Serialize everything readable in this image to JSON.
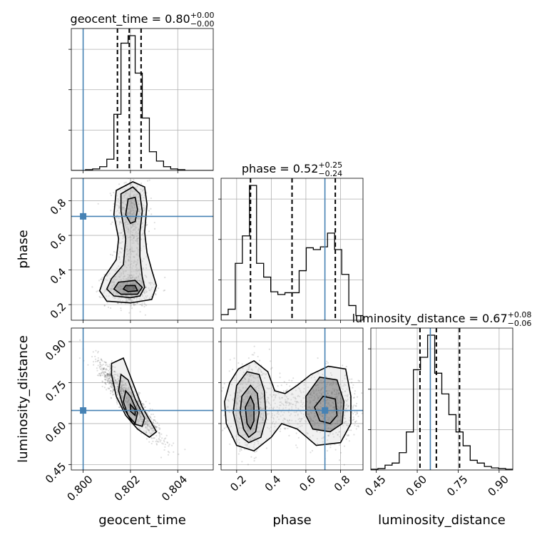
{
  "chart_data": {
    "type": "corner",
    "parameters": [
      "geocent_time",
      "phase",
      "luminosity_distance"
    ],
    "ranges": {
      "geocent_time": [
        0.7995,
        0.8055
      ],
      "phase": [
        0.11,
        0.93
      ],
      "luminosity_distance": [
        0.43,
        0.95
      ]
    },
    "ticks": {
      "geocent_time": {
        "values": [
          0.8,
          0.802,
          0.804
        ],
        "labels": [
          "0.800",
          "0.802",
          "0.804"
        ]
      },
      "phase": {
        "values": [
          0.2,
          0.4,
          0.6,
          0.8
        ],
        "labels": [
          "0.2",
          "0.4",
          "0.6",
          "0.8"
        ]
      },
      "luminosity_distance": {
        "values": [
          0.45,
          0.6,
          0.75,
          0.9
        ],
        "labels": [
          "0.45",
          "0.60",
          "0.75",
          "0.90"
        ]
      }
    },
    "truths": {
      "geocent_time": 0.8,
      "phase": 0.71,
      "luminosity_distance": 0.648
    },
    "summaries": [
      {
        "param": "geocent_time",
        "label": "geocent_time = 0.80",
        "median": 0.8,
        "plus": "+0.00",
        "minus": "−0.00",
        "quantile_lines": [
          0.80145,
          0.80195,
          0.80245
        ]
      },
      {
        "param": "phase",
        "label": "phase = 0.52",
        "median": 0.52,
        "plus": "+0.25",
        "minus": "−0.24",
        "quantile_lines": [
          0.28,
          0.52,
          0.77
        ]
      },
      {
        "param": "luminosity_distance",
        "label": "luminosity_distance = 0.67",
        "median": 0.67,
        "plus": "+0.08",
        "minus": "−0.06",
        "quantile_lines": [
          0.61,
          0.67,
          0.755
        ]
      }
    ],
    "histograms": {
      "geocent_time": {
        "edges": [
          0.7995,
          0.7998,
          0.8001,
          0.8004,
          0.8007,
          0.801,
          0.8013,
          0.8016,
          0.8019,
          0.8022,
          0.8025,
          0.8028,
          0.8031,
          0.8034,
          0.8037,
          0.804,
          0.8043,
          0.8046,
          0.8049,
          0.8052,
          0.8055
        ],
        "counts": [
          0,
          0,
          2,
          4,
          10,
          30,
          150,
          340,
          360,
          260,
          140,
          50,
          25,
          10,
          4,
          2,
          0,
          0,
          0,
          0
        ]
      },
      "phase": {
        "edges": [
          0.11,
          0.151,
          0.192,
          0.233,
          0.274,
          0.315,
          0.356,
          0.397,
          0.438,
          0.479,
          0.52,
          0.561,
          0.602,
          0.643,
          0.684,
          0.725,
          0.766,
          0.807,
          0.848,
          0.889,
          0.93
        ],
        "counts": [
          6,
          12,
          62,
          92,
          147,
          62,
          47,
          31,
          28,
          30,
          30,
          54,
          79,
          77,
          80,
          95,
          77,
          50,
          16,
          5
        ]
      },
      "luminosity_distance": {
        "edges": [
          0.43,
          0.456,
          0.482,
          0.508,
          0.534,
          0.56,
          0.586,
          0.612,
          0.638,
          0.664,
          0.69,
          0.716,
          0.742,
          0.768,
          0.794,
          0.82,
          0.846,
          0.872,
          0.898,
          0.924,
          0.95
        ],
        "counts": [
          1,
          2,
          7,
          10,
          25,
          55,
          145,
          163,
          195,
          140,
          110,
          80,
          55,
          35,
          14,
          10,
          5,
          3,
          2,
          1
        ]
      }
    },
    "scatter_2d": [
      {
        "x": "geocent_time",
        "y": "phase",
        "clusters": [
          {
            "cx": 0.80205,
            "cy": 0.74,
            "sx": 0.00035,
            "sy": 0.09,
            "rho": 0.0,
            "n": 500
          },
          {
            "cx": 0.80195,
            "cy": 0.29,
            "sx": 0.0005,
            "sy": 0.05,
            "rho": 0.0,
            "n": 550
          },
          {
            "cx": 0.8021,
            "cy": 0.5,
            "sx": 0.00035,
            "sy": 0.08,
            "rho": 0.0,
            "n": 180
          }
        ]
      },
      {
        "x": "geocent_time",
        "y": "luminosity_distance",
        "clusters": [
          {
            "cx": 0.80195,
            "cy": 0.685,
            "sx": 0.00065,
            "sy": 0.07,
            "rho": -0.93,
            "n": 1200
          }
        ]
      },
      {
        "x": "phase",
        "y": "luminosity_distance",
        "clusters": [
          {
            "cx": 0.28,
            "cy": 0.66,
            "sx": 0.06,
            "sy": 0.075,
            "rho": 0.0,
            "n": 700
          },
          {
            "cx": 0.74,
            "cy": 0.66,
            "sx": 0.08,
            "sy": 0.06,
            "rho": 0.0,
            "n": 600
          },
          {
            "cx": 0.5,
            "cy": 0.66,
            "sx": 0.08,
            "sy": 0.045,
            "rho": 0.0,
            "n": 200
          }
        ]
      }
    ],
    "contours_2d": [
      {
        "x": "geocent_time",
        "y": "phase",
        "rings": [
          [
            [
              0.8014,
              0.86
            ],
            [
              0.8021,
              0.91
            ],
            [
              0.8026,
              0.88
            ],
            [
              0.8027,
              0.78
            ],
            [
              0.8026,
              0.62
            ],
            [
              0.8027,
              0.5
            ],
            [
              0.8029,
              0.4
            ],
            [
              0.8031,
              0.31
            ],
            [
              0.8029,
              0.23
            ],
            [
              0.802,
              0.21
            ],
            [
              0.801,
              0.22
            ],
            [
              0.8007,
              0.28
            ],
            [
              0.8009,
              0.36
            ],
            [
              0.8014,
              0.46
            ],
            [
              0.8015,
              0.58
            ],
            [
              0.8013,
              0.72
            ]
          ],
          [
            [
              0.8016,
              0.84
            ],
            [
              0.8021,
              0.88
            ],
            [
              0.8024,
              0.84
            ],
            [
              0.8025,
              0.74
            ],
            [
              0.8024,
              0.62
            ],
            [
              0.8024,
              0.48
            ],
            [
              0.8025,
              0.36
            ],
            [
              0.8026,
              0.3
            ],
            [
              0.8024,
              0.25
            ],
            [
              0.802,
              0.24
            ],
            [
              0.8013,
              0.25
            ],
            [
              0.801,
              0.29
            ],
            [
              0.8012,
              0.35
            ],
            [
              0.8017,
              0.43
            ],
            [
              0.8018,
              0.58
            ],
            [
              0.8016,
              0.74
            ]
          ],
          [
            [
              0.8019,
              0.81
            ],
            [
              0.8022,
              0.82
            ],
            [
              0.8023,
              0.75
            ],
            [
              0.8022,
              0.68
            ],
            [
              0.802,
              0.67
            ],
            [
              0.8018,
              0.72
            ]
          ],
          [
            [
              0.8015,
              0.33
            ],
            [
              0.8022,
              0.34
            ],
            [
              0.8025,
              0.3
            ],
            [
              0.8023,
              0.26
            ],
            [
              0.8016,
              0.26
            ],
            [
              0.8013,
              0.29
            ]
          ],
          [
            [
              0.8018,
              0.31
            ],
            [
              0.8022,
              0.31
            ],
            [
              0.8023,
              0.28
            ],
            [
              0.8019,
              0.275
            ],
            [
              0.8017,
              0.29
            ]
          ]
        ]
      },
      {
        "x": "geocent_time",
        "y": "luminosity_distance",
        "rings": [
          [
            [
              0.8012,
              0.82
            ],
            [
              0.8017,
              0.84
            ],
            [
              0.8021,
              0.75
            ],
            [
              0.8025,
              0.66
            ],
            [
              0.8029,
              0.6
            ],
            [
              0.8031,
              0.57
            ],
            [
              0.8028,
              0.55
            ],
            [
              0.8023,
              0.58
            ],
            [
              0.8018,
              0.63
            ],
            [
              0.8014,
              0.7
            ],
            [
              0.8012,
              0.78
            ]
          ],
          [
            [
              0.8016,
              0.78
            ],
            [
              0.8019,
              0.76
            ],
            [
              0.8022,
              0.69
            ],
            [
              0.8026,
              0.62
            ],
            [
              0.8025,
              0.59
            ],
            [
              0.8021,
              0.6
            ],
            [
              0.8017,
              0.66
            ],
            [
              0.8015,
              0.72
            ]
          ],
          [
            [
              0.8018,
              0.72
            ],
            [
              0.802,
              0.7
            ],
            [
              0.8023,
              0.64
            ],
            [
              0.8022,
              0.6
            ],
            [
              0.8019,
              0.63
            ],
            [
              0.8017,
              0.68
            ]
          ],
          [
            [
              0.802,
              0.67
            ],
            [
              0.8022,
              0.65
            ],
            [
              0.8022,
              0.63
            ],
            [
              0.802,
              0.645
            ]
          ]
        ]
      },
      {
        "x": "phase",
        "y": "luminosity_distance",
        "rings": [
          [
            [
              0.16,
              0.75
            ],
            [
              0.21,
              0.8
            ],
            [
              0.3,
              0.83
            ],
            [
              0.38,
              0.79
            ],
            [
              0.42,
              0.72
            ],
            [
              0.48,
              0.71
            ],
            [
              0.55,
              0.74
            ],
            [
              0.63,
              0.78
            ],
            [
              0.73,
              0.81
            ],
            [
              0.83,
              0.8
            ],
            [
              0.86,
              0.7
            ],
            [
              0.86,
              0.6
            ],
            [
              0.8,
              0.53
            ],
            [
              0.66,
              0.52
            ],
            [
              0.55,
              0.58
            ],
            [
              0.46,
              0.6
            ],
            [
              0.4,
              0.55
            ],
            [
              0.3,
              0.5
            ],
            [
              0.2,
              0.52
            ],
            [
              0.14,
              0.6
            ],
            [
              0.13,
              0.68
            ]
          ],
          [
            [
              0.2,
              0.74
            ],
            [
              0.26,
              0.79
            ],
            [
              0.33,
              0.78
            ],
            [
              0.36,
              0.72
            ],
            [
              0.37,
              0.62
            ],
            [
              0.34,
              0.55
            ],
            [
              0.27,
              0.53
            ],
            [
              0.21,
              0.56
            ],
            [
              0.18,
              0.64
            ]
          ],
          [
            [
              0.23,
              0.7
            ],
            [
              0.28,
              0.74
            ],
            [
              0.32,
              0.71
            ],
            [
              0.33,
              0.64
            ],
            [
              0.31,
              0.57
            ],
            [
              0.27,
              0.55
            ],
            [
              0.24,
              0.58
            ],
            [
              0.22,
              0.64
            ]
          ],
          [
            [
              0.25,
              0.66
            ],
            [
              0.28,
              0.7
            ],
            [
              0.3,
              0.67
            ],
            [
              0.3,
              0.61
            ],
            [
              0.28,
              0.58
            ],
            [
              0.26,
              0.6
            ]
          ],
          [
            [
              0.6,
              0.7
            ],
            [
              0.68,
              0.77
            ],
            [
              0.78,
              0.76
            ],
            [
              0.82,
              0.68
            ],
            [
              0.81,
              0.6
            ],
            [
              0.74,
              0.57
            ],
            [
              0.64,
              0.58
            ],
            [
              0.6,
              0.63
            ]
          ],
          [
            [
              0.65,
              0.66
            ],
            [
              0.7,
              0.7
            ],
            [
              0.77,
              0.69
            ],
            [
              0.78,
              0.63
            ],
            [
              0.74,
              0.6
            ],
            [
              0.68,
              0.61
            ]
          ]
        ]
      }
    ],
    "grid": true
  }
}
